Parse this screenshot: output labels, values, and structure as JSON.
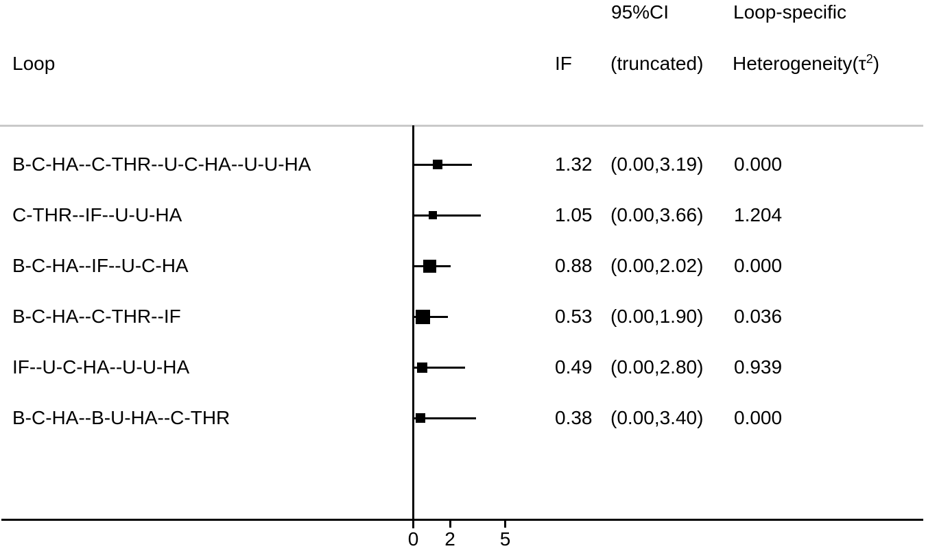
{
  "figure": {
    "headers": {
      "loop": "Loop",
      "if_label": "IF",
      "ci_line1": "95%CI",
      "ci_line2": "(truncated)",
      "het_line1": "Loop-specific",
      "het_line2_pre": "Heterogeneity(τ",
      "het_line2_sup": "2",
      "het_line2_post": ")"
    },
    "colors": {
      "text": "#000000",
      "marker": "#000000",
      "axis": "#000000",
      "separator": "#c9c9c9",
      "background": "#ffffff"
    }
  },
  "chart_data": {
    "type": "scatter",
    "subtype": "forest-plot",
    "title": "",
    "xlabel": "",
    "ylabel": "",
    "grid": false,
    "legend": false,
    "x_ticks": [
      {
        "label": "0",
        "value": 0
      },
      {
        "label": "2",
        "value": 2
      },
      {
        "label": "5",
        "value": 5
      }
    ],
    "ci_truncated_at_zero": true,
    "rows": [
      {
        "loop": "B-C-HA--C-THR--U-C-HA--U-U-HA",
        "if_value": 1.32,
        "if_text": "1.32",
        "ci_low": 0.0,
        "ci_high": 3.19,
        "ci_text": "(0.00,3.19)",
        "tau2": "0.000",
        "marker_size": 14
      },
      {
        "loop": "C-THR--IF--U-U-HA",
        "if_value": 1.05,
        "if_text": "1.05",
        "ci_low": 0.0,
        "ci_high": 3.66,
        "ci_text": "(0.00,3.66)",
        "tau2": "1.204",
        "marker_size": 12
      },
      {
        "loop": "B-C-HA--IF--U-C-HA",
        "if_value": 0.88,
        "if_text": "0.88",
        "ci_low": 0.0,
        "ci_high": 2.02,
        "ci_text": "(0.00,2.02)",
        "tau2": "0.000",
        "marker_size": 19
      },
      {
        "loop": "B-C-HA--C-THR--IF",
        "if_value": 0.53,
        "if_text": "0.53",
        "ci_low": 0.0,
        "ci_high": 1.9,
        "ci_text": "(0.00,1.90)",
        "tau2": "0.036",
        "marker_size": 21
      },
      {
        "loop": "IF--U-C-HA--U-U-HA",
        "if_value": 0.49,
        "if_text": "0.49",
        "ci_low": 0.0,
        "ci_high": 2.8,
        "ci_text": "(0.00,2.80)",
        "tau2": "0.939",
        "marker_size": 15
      },
      {
        "loop": "B-C-HA--B-U-HA--C-THR",
        "if_value": 0.38,
        "if_text": "0.38",
        "ci_low": 0.0,
        "ci_high": 3.4,
        "ci_text": "(0.00,3.40)",
        "tau2": "0.000",
        "marker_size": 14
      }
    ]
  }
}
